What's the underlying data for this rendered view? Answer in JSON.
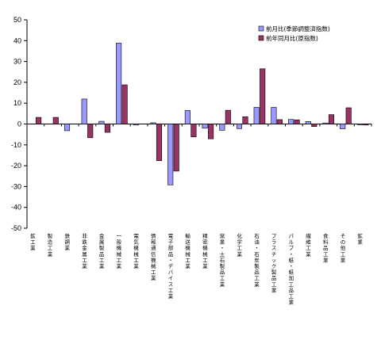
{
  "chart_data": {
    "type": "bar",
    "title": "",
    "xlabel": "",
    "ylabel": "",
    "ylim": [
      -50,
      50
    ],
    "yticks": [
      50,
      40,
      30,
      20,
      10,
      0,
      -10,
      -20,
      -30,
      -40,
      -50
    ],
    "grid": false,
    "legend_position": "top-right",
    "categories": [
      "鉱工業",
      "製造工業",
      "鉄鋼業",
      "非鉄金属工業",
      "金属製品工業",
      "一般機械工業",
      "電気機械工業",
      "情報通信機械工業",
      "電子部品・デバイス工業",
      "輸送機械工業",
      "精密機械工業",
      "窯業・土石製品工業",
      "化学工業",
      "石油・石炭製品工業",
      "プラスチック製品工業",
      "パルプ・紙・紙加工品工業",
      "繊維工業",
      "食料品工業",
      "その他工業",
      "鉱業"
    ],
    "series": [
      {
        "name": "前月比(季節調整済指数)",
        "color": "#9999ff",
        "values": [
          0.0,
          0.0,
          -3.2,
          12.0,
          1.3,
          38.8,
          -0.5,
          0.6,
          -29.2,
          6.5,
          -2.0,
          -3.0,
          -2.2,
          8.0,
          8.0,
          2.2,
          1.2,
          0.5,
          -2.3,
          -0.4
        ]
      },
      {
        "name": "前年同月比(原指数)",
        "color": "#993366",
        "values": [
          3.2,
          3.2,
          0.0,
          -6.6,
          -4.0,
          18.8,
          0.0,
          -17.6,
          -22.6,
          -6.2,
          -7.1,
          6.6,
          3.5,
          26.5,
          2.1,
          2.0,
          -1.2,
          4.5,
          7.8,
          -0.5
        ]
      }
    ]
  }
}
